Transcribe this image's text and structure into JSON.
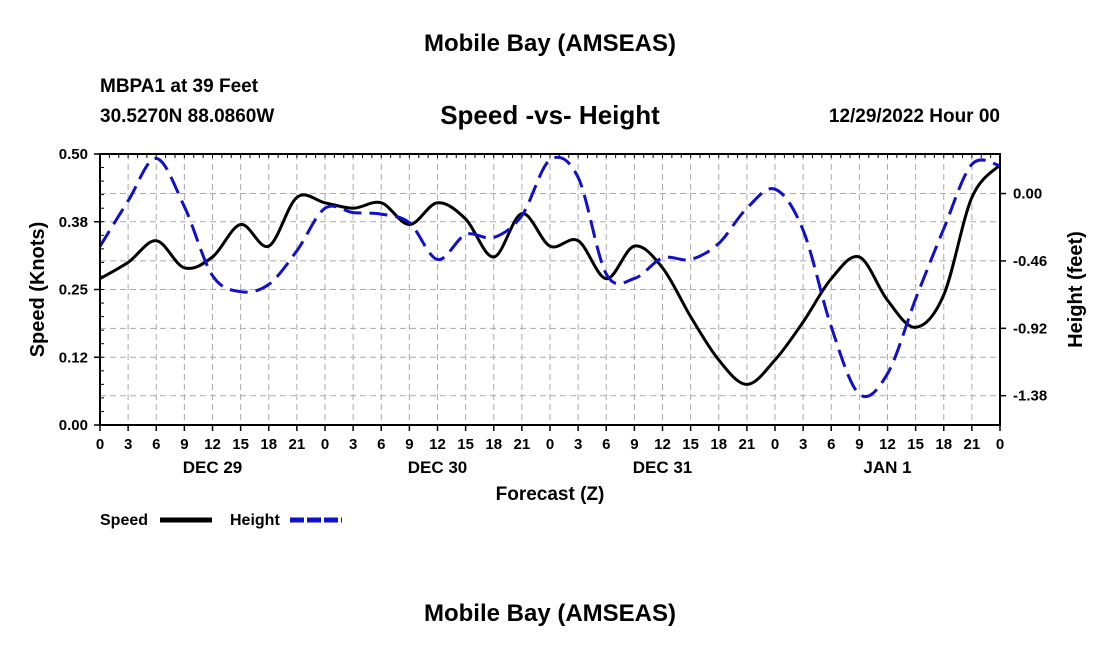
{
  "header": {
    "title": "Mobile Bay (AMSEAS)",
    "station": "MBPA1 at 39 Feet",
    "coords": "30.5270N   88.0860W",
    "subtitle": "Speed -vs- Height",
    "datestamp": "12/29/2022 Hour 00"
  },
  "footer": {
    "title": "Mobile Bay (AMSEAS)"
  },
  "colors": {
    "speed": "#000000",
    "height": "#1010c8",
    "grid": "#aaaaaa"
  },
  "chart_data": {
    "type": "line",
    "xlabel": "Forecast (Z)",
    "ylabel": "Speed (Knots)",
    "y2label": "Height (feet)",
    "xlim": [
      0,
      96
    ],
    "ylim": [
      0,
      0.5
    ],
    "y2lim": [
      -1.58,
      0.27
    ],
    "x_ticks": [
      0,
      3,
      6,
      9,
      12,
      15,
      18,
      21,
      24,
      27,
      30,
      33,
      36,
      39,
      42,
      45,
      48,
      51,
      54,
      57,
      60,
      63,
      66,
      69,
      72,
      75,
      78,
      81,
      84,
      87,
      90,
      93,
      96
    ],
    "x_tick_labels": [
      "0",
      "3",
      "6",
      "9",
      "12",
      "15",
      "18",
      "21",
      "0",
      "3",
      "6",
      "9",
      "12",
      "15",
      "18",
      "21",
      "0",
      "3",
      "6",
      "9",
      "12",
      "15",
      "18",
      "21",
      "0",
      "3",
      "6",
      "9",
      "12",
      "15",
      "18",
      "21",
      "0"
    ],
    "day_labels": [
      {
        "x": 12,
        "label": "DEC 29"
      },
      {
        "x": 36,
        "label": "DEC 30"
      },
      {
        "x": 60,
        "label": "DEC 31"
      },
      {
        "x": 84,
        "label": "JAN 1"
      }
    ],
    "y_ticks": [
      0,
      0.125,
      0.25,
      0.375,
      0.5
    ],
    "y_tick_labels": [
      "0.00",
      "0.12",
      "0.25",
      "0.38",
      "0.50"
    ],
    "y2_ticks": [
      0.0,
      -0.46,
      -0.92,
      -1.38
    ],
    "y2_tick_labels": [
      "0.00",
      "-0.46",
      "-0.92",
      "-1.38"
    ],
    "legend": [
      {
        "name": "Speed",
        "style": "solid"
      },
      {
        "name": "Height",
        "style": "dashed"
      }
    ],
    "series": [
      {
        "name": "Speed",
        "axis": "left",
        "x": [
          0,
          3,
          6,
          9,
          12,
          15,
          18,
          21,
          24,
          27,
          30,
          33,
          36,
          39,
          42,
          45,
          48,
          51,
          54,
          57,
          60,
          63,
          66,
          69,
          72,
          75,
          78,
          81,
          84,
          87,
          90,
          93,
          96
        ],
        "values": [
          0.27,
          0.3,
          0.34,
          0.29,
          0.31,
          0.37,
          0.33,
          0.42,
          0.41,
          0.4,
          0.41,
          0.37,
          0.41,
          0.38,
          0.31,
          0.39,
          0.33,
          0.34,
          0.27,
          0.33,
          0.29,
          0.2,
          0.12,
          0.075,
          0.12,
          0.19,
          0.27,
          0.31,
          0.23,
          0.18,
          0.24,
          0.42,
          0.48
        ]
      },
      {
        "name": "Height",
        "axis": "right",
        "x": [
          0,
          3,
          6,
          9,
          12,
          15,
          18,
          21,
          24,
          27,
          30,
          33,
          36,
          39,
          42,
          45,
          48,
          51,
          54,
          57,
          60,
          63,
          66,
          69,
          72,
          75,
          78,
          81,
          84,
          87,
          90,
          93,
          96
        ],
        "values": [
          -0.36,
          -0.05,
          0.24,
          -0.09,
          -0.56,
          -0.67,
          -0.62,
          -0.39,
          -0.1,
          -0.13,
          -0.14,
          -0.2,
          -0.45,
          -0.28,
          -0.3,
          -0.15,
          0.23,
          0.11,
          -0.55,
          -0.58,
          -0.44,
          -0.45,
          -0.34,
          -0.1,
          0.03,
          -0.25,
          -0.91,
          -1.37,
          -1.23,
          -0.72,
          -0.24,
          0.2,
          0.19
        ]
      }
    ]
  }
}
